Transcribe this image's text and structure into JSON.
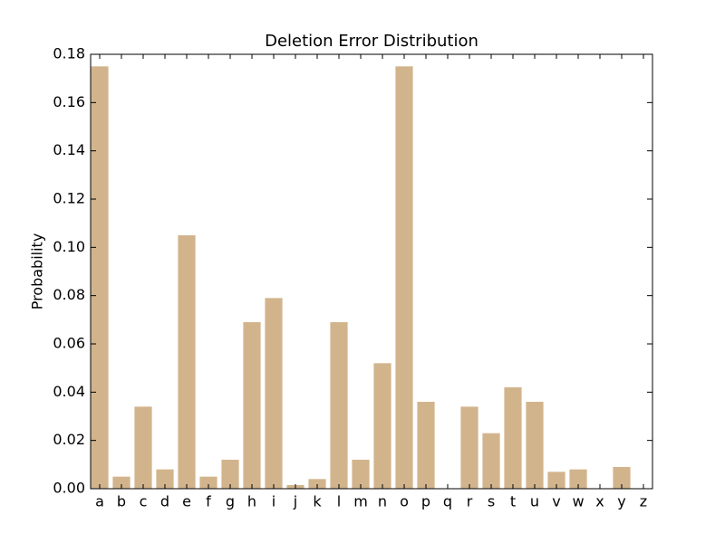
{
  "chart_data": {
    "type": "bar",
    "title": "Deletion Error Distribution",
    "y_label": "Probability",
    "categories": [
      "a",
      "b",
      "c",
      "d",
      "e",
      "f",
      "g",
      "h",
      "i",
      "j",
      "k",
      "l",
      "m",
      "n",
      "o",
      "p",
      "q",
      "r",
      "s",
      "t",
      "u",
      "v",
      "w",
      "x",
      "y",
      "z"
    ],
    "values": [
      0.175,
      0.005,
      0.034,
      0.008,
      0.105,
      0.005,
      0.012,
      0.069,
      0.079,
      0.0015,
      0.004,
      0.069,
      0.012,
      0.052,
      0.175,
      0.036,
      0,
      0.034,
      0.023,
      0.042,
      0.036,
      0.007,
      0.008,
      0,
      0.009,
      0
    ],
    "color": "#d2b48c",
    "ylim": [
      0,
      0.18
    ],
    "yticks": [
      {
        "value": 0,
        "label": "0.00"
      },
      {
        "value": 0.02,
        "label": "0.02"
      },
      {
        "value": 0.04,
        "label": "0.04"
      },
      {
        "value": 0.06,
        "label": "0.06"
      },
      {
        "value": 0.08,
        "label": "0.08"
      },
      {
        "value": 0.1,
        "label": "0.10"
      },
      {
        "value": 0.12,
        "label": "0.12"
      },
      {
        "value": 0.14,
        "label": "0.14"
      },
      {
        "value": 0.16,
        "label": "0.16"
      },
      {
        "value": 0.18,
        "label": "0.18"
      }
    ],
    "grid": false
  }
}
